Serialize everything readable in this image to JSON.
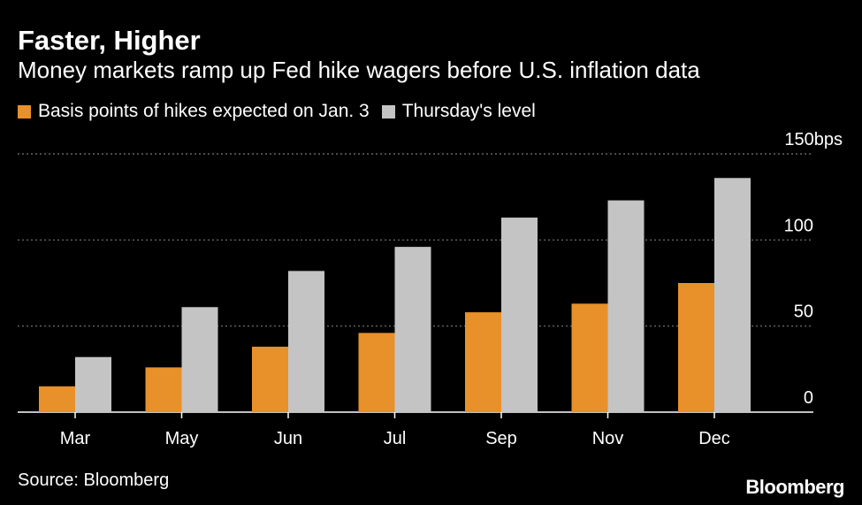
{
  "header": {
    "title": "Faster, Higher",
    "subtitle": "Money markets ramp up Fed hike wagers before U.S. inflation data"
  },
  "footer": {
    "source": "Source: Bloomberg",
    "brand": "Bloomberg"
  },
  "colors": {
    "background": "#000000",
    "jan3": "#e8912a",
    "thursday": "#c4c4c4",
    "gridline": "#7a7a7a"
  },
  "chart_data": {
    "type": "bar",
    "categories": [
      "Mar",
      "May",
      "Jun",
      "Jul",
      "Sep",
      "Nov",
      "Dec"
    ],
    "series": [
      {
        "name": "Basis points of hikes expected on Jan. 3",
        "values": [
          15,
          26,
          38,
          46,
          58,
          63,
          75
        ]
      },
      {
        "name": "Thursday's level",
        "values": [
          32,
          61,
          82,
          96,
          113,
          123,
          136
        ]
      }
    ],
    "ylim": [
      0,
      150
    ],
    "yticks": [
      0,
      50,
      100,
      150
    ],
    "ytick_labels": [
      "0",
      "50",
      "100",
      "150bps"
    ],
    "grid": true,
    "y_axis_side": "right",
    "legend_position": "top-left"
  }
}
